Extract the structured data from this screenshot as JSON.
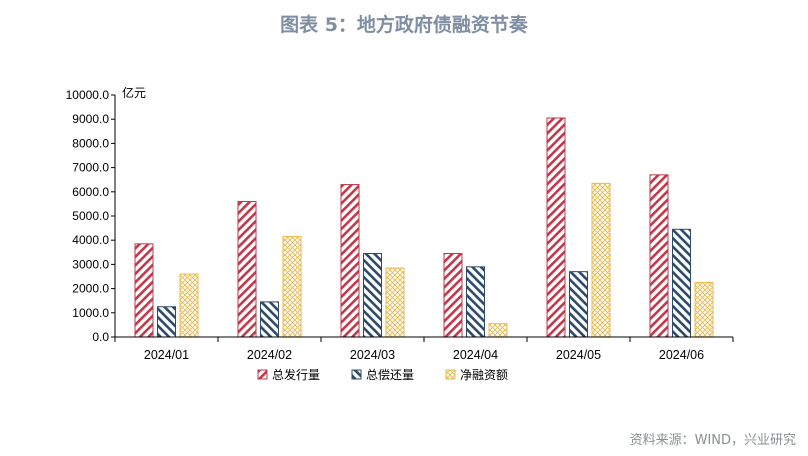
{
  "title": "图表 5：地方政府债融资节奏",
  "source": "资料来源：WIND，兴业研究",
  "colors": {
    "issue": "#c0394b",
    "repay": "#2e4a6b",
    "net": "#e8b84a",
    "title": "#7f8ea2"
  },
  "chart_data": {
    "type": "bar",
    "title": "图表 5：地方政府债融资节奏",
    "ylabel": "亿元",
    "ylim": [
      0,
      10000
    ],
    "yticks": [
      "0.0",
      "1000.0",
      "2000.0",
      "3000.0",
      "4000.0",
      "5000.0",
      "6000.0",
      "7000.0",
      "8000.0",
      "9000.0",
      "10000.0"
    ],
    "categories": [
      "2024/01",
      "2024/02",
      "2024/03",
      "2024/04",
      "2024/05",
      "2024/06"
    ],
    "series": [
      {
        "name": "总发行量",
        "values": [
          3850,
          5600,
          6300,
          3450,
          9050,
          6700
        ]
      },
      {
        "name": "总偿还量",
        "values": [
          1250,
          1450,
          3450,
          2900,
          2700,
          4450
        ]
      },
      {
        "name": "净融资额",
        "values": [
          2600,
          4150,
          2850,
          550,
          6350,
          2250
        ]
      }
    ],
    "legend": "bottom"
  }
}
